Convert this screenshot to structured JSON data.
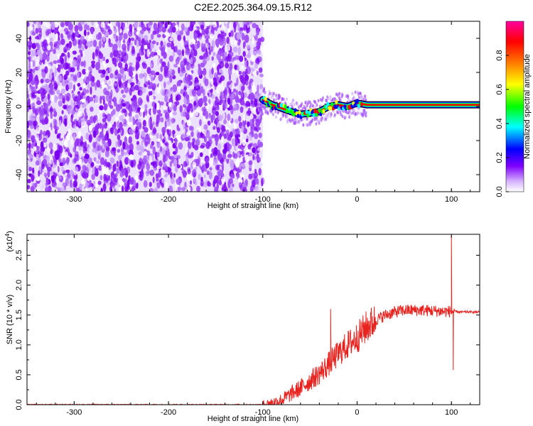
{
  "figure": {
    "title": "C2E2.2025.364.09.15.R12"
  },
  "chart_data": [
    {
      "type": "heatmap",
      "xlabel": "Height of straight line (km)",
      "ylabel": "Frequency (Hz)",
      "xlim": [
        -350,
        130
      ],
      "ylim": [
        -50,
        50
      ],
      "xticks": [
        -300,
        -200,
        -100,
        0,
        100
      ],
      "yticks": [
        -40,
        -20,
        0,
        20,
        40
      ],
      "noise_region_x": [
        -350,
        -100
      ],
      "signal_track": {
        "x": [
          -100,
          -90,
          -80,
          -70,
          -60,
          -50,
          -40,
          -30,
          -20,
          -10,
          0,
          10,
          30,
          50,
          70,
          90,
          100,
          130
        ],
        "y": [
          4,
          1,
          -1,
          -3,
          -4.5,
          -4,
          -3,
          0,
          1,
          0,
          2,
          1,
          1,
          1,
          1,
          1,
          1,
          1
        ]
      },
      "colorbar": {
        "label": "Normalized spectral amplitude",
        "range": [
          0,
          1
        ],
        "ticks": [
          "0.0",
          "0.2",
          "0.4",
          "0.6",
          "0.8"
        ],
        "colors": [
          "#ffffff",
          "#8000ff",
          "#0000ff",
          "#00ffff",
          "#00ff00",
          "#ffff00",
          "#ff8000",
          "#ff0000",
          "#ff00ff"
        ]
      }
    },
    {
      "type": "line",
      "xlabel": "Height of straight line (km)",
      "ylabel": "SNR (10 * v/v)",
      "ylabel_exponent": "(x10",
      "ylabel_exponent_power": "4",
      "ylabel_exponent_close": ")",
      "xlim": [
        -350,
        130
      ],
      "ylim": [
        0,
        2.85
      ],
      "xticks": [
        -300,
        -200,
        -100,
        0,
        100
      ],
      "yticks": [
        "0.0",
        "0.5",
        "1.0",
        "1.5",
        "2.0",
        "2.5"
      ],
      "color": "#e8231f",
      "trend": {
        "x": [
          -350,
          -100,
          -90,
          -80,
          -70,
          -60,
          -50,
          -40,
          -30,
          -20,
          -10,
          0,
          10,
          20,
          30,
          40,
          50,
          60,
          70,
          80,
          90,
          100,
          110,
          120,
          130
        ],
        "y": [
          0.0,
          0.0,
          0.03,
          0.08,
          0.18,
          0.28,
          0.4,
          0.52,
          0.68,
          0.85,
          1.0,
          1.12,
          1.3,
          1.42,
          1.5,
          1.55,
          1.58,
          1.58,
          1.58,
          1.57,
          1.56,
          1.56,
          1.55,
          1.55,
          1.55
        ]
      },
      "spikes": [
        {
          "x": -28,
          "y": 1.6
        },
        {
          "x": 100,
          "y": 2.85
        },
        {
          "x": 102,
          "y": 0.58
        }
      ]
    }
  ]
}
